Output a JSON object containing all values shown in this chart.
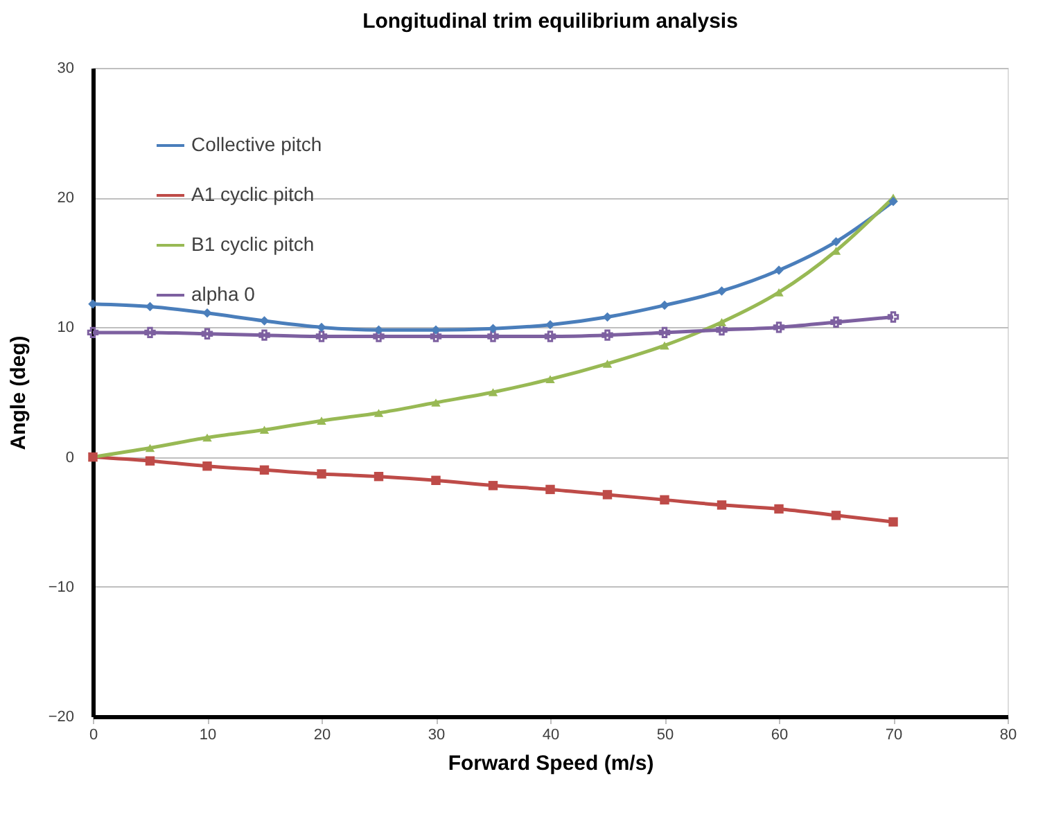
{
  "chart_data": {
    "type": "line",
    "title": "Longitudinal trim equilibrium analysis",
    "xlabel": "Forward Speed (m/s)",
    "ylabel": "Angle (deg)",
    "x": [
      0,
      5,
      10,
      15,
      20,
      25,
      30,
      35,
      40,
      45,
      50,
      55,
      60,
      65,
      70
    ],
    "xlim": [
      0,
      80
    ],
    "xticks": [
      0,
      10,
      20,
      30,
      40,
      50,
      60,
      70,
      80
    ],
    "ylim": [
      -20,
      30
    ],
    "yticks": [
      -20,
      -10,
      0,
      10,
      20,
      30
    ],
    "grid": "y",
    "legend": "top left",
    "series": [
      {
        "name": "Collective pitch",
        "color": "#4a7ebb",
        "marker": "diamond",
        "values": [
          11.8,
          11.6,
          11.1,
          10.5,
          10.0,
          9.8,
          9.8,
          9.9,
          10.2,
          10.8,
          11.7,
          12.8,
          14.4,
          16.6,
          19.7
        ]
      },
      {
        "name": "A1 cyclic pitch",
        "color": "#be4b48",
        "marker": "square",
        "values": [
          0,
          -0.3,
          -0.7,
          -1.0,
          -1.3,
          -1.5,
          -1.8,
          -2.2,
          -2.5,
          -2.9,
          -3.3,
          -3.7,
          -4.0,
          -4.5,
          -5.0
        ]
      },
      {
        "name": "B1 cyclic pitch",
        "color": "#98b954",
        "marker": "triangle",
        "values": [
          0,
          0.7,
          1.5,
          2.1,
          2.8,
          3.4,
          4.2,
          5.0,
          6.0,
          7.2,
          8.6,
          10.4,
          12.7,
          15.9,
          20.0
        ]
      },
      {
        "name": "alpha 0",
        "color": "#7d60a0",
        "marker": "cross",
        "values": [
          9.6,
          9.6,
          9.5,
          9.4,
          9.3,
          9.3,
          9.3,
          9.3,
          9.3,
          9.4,
          9.6,
          9.8,
          10.0,
          10.4,
          10.8
        ]
      }
    ]
  }
}
